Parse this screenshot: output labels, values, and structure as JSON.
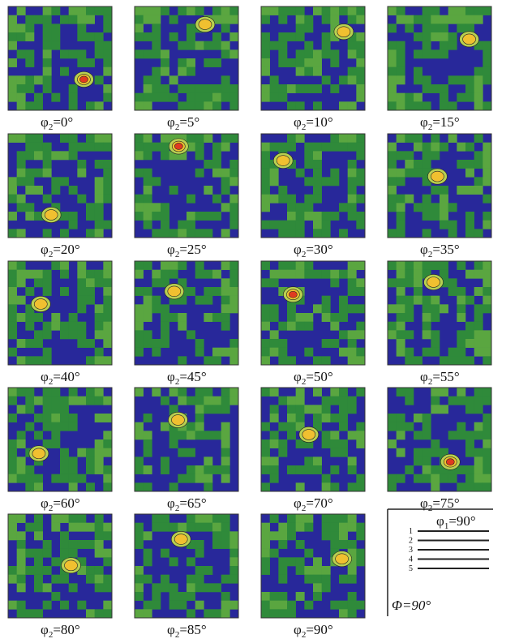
{
  "panels": [
    {
      "symbol": "φ",
      "subscript": "2",
      "rest": "=0°"
    },
    {
      "symbol": "φ",
      "subscript": "2",
      "rest": "=5°"
    },
    {
      "symbol": "φ",
      "subscript": "2",
      "rest": "=10°"
    },
    {
      "symbol": "φ",
      "subscript": "2",
      "rest": "=15°"
    },
    {
      "symbol": "φ",
      "subscript": "2",
      "rest": "=20°"
    },
    {
      "symbol": "φ",
      "subscript": "2",
      "rest": "=25°"
    },
    {
      "symbol": "φ",
      "subscript": "2",
      "rest": "=30°"
    },
    {
      "symbol": "φ",
      "subscript": "2",
      "rest": "=35°"
    },
    {
      "symbol": "φ",
      "subscript": "2",
      "rest": "=40°"
    },
    {
      "symbol": "φ",
      "subscript": "2",
      "rest": "=45°"
    },
    {
      "symbol": "φ",
      "subscript": "2",
      "rest": "=50°"
    },
    {
      "symbol": "φ",
      "subscript": "2",
      "rest": "=55°"
    },
    {
      "symbol": "φ",
      "subscript": "2",
      "rest": "=60°"
    },
    {
      "symbol": "φ",
      "subscript": "2",
      "rest": "=65°"
    },
    {
      "symbol": "φ",
      "subscript": "2",
      "rest": "=70°"
    },
    {
      "symbol": "φ",
      "subscript": "2",
      "rest": "=75°"
    },
    {
      "symbol": "φ",
      "subscript": "2",
      "rest": "=80°"
    },
    {
      "symbol": "φ",
      "subscript": "2",
      "rest": "=85°"
    },
    {
      "symbol": "φ",
      "subscript": "2",
      "rest": "=90°"
    }
  ],
  "legend": {
    "top": {
      "symbol": "φ",
      "subscript": "1",
      "rest": "=90°"
    },
    "levels": [
      "1",
      "2",
      "3",
      "4",
      "5"
    ],
    "bottom": "Φ=90°"
  }
}
